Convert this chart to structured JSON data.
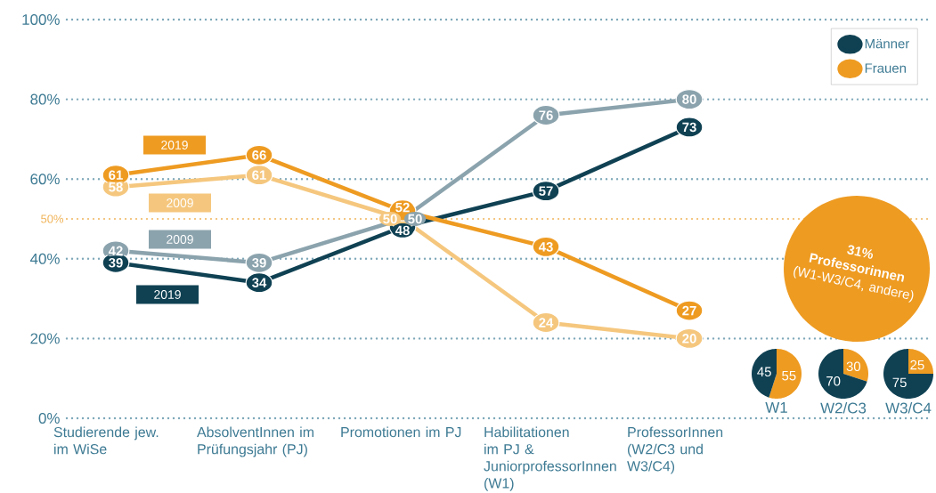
{
  "chart_data": [
    {
      "type": "line",
      "categories": [
        "Studierende jew. im WiSe",
        "AbsolventInnen im Prüfungsjahr (PJ)",
        "Promotionen im PJ",
        "Habilitationen im PJ & JuniorprofessorInnen (W1)",
        "ProfessorInnen (W2/C3 und W3/C4)"
      ],
      "series": [
        {
          "name": "Frauen",
          "color": "#ee9b22",
          "values": [
            61,
            66,
            52,
            43,
            27
          ]
        },
        {
          "color": "#f5c77e",
          "values": [
            58,
            61,
            50,
            24,
            20
          ]
        },
        {
          "name": "Männer",
          "color": "#0f4153",
          "values": [
            39,
            34,
            48,
            57,
            73
          ]
        },
        {
          "color": "#8ba3ad",
          "values": [
            42,
            39,
            50,
            76,
            80
          ]
        }
      ],
      "ylim": [
        0,
        100
      ],
      "yticks": [
        {
          "value": 0,
          "label": "0%"
        },
        {
          "value": 20,
          "label": "20%"
        },
        {
          "value": 40,
          "label": "40%"
        },
        {
          "value": 60,
          "label": "60%"
        },
        {
          "value": 80,
          "label": "80%"
        },
        {
          "value": 100,
          "label": "100%"
        }
      ],
      "grid": "y",
      "legend": "top right",
      "marker": "circle",
      "data_labels": true,
      "ref_lines": [
        {
          "axis": "y",
          "value": 50,
          "label": "50%",
          "color": "#f0b45a",
          "line_style": "dotted"
        }
      ],
      "annotations": [
        "2019",
        "2009",
        "2009",
        "2019",
        "**31% Professorinnen** (W1-W3/C4, andere)"
      ]
    },
    {
      "type": "pie",
      "title": "W1",
      "categories": [
        null,
        null
      ],
      "values": [
        55,
        45
      ],
      "colors": [
        "#ee9b22",
        "#0f4153"
      ],
      "data_labels": true
    },
    {
      "type": "pie",
      "title": "W2/C3",
      "categories": [
        null,
        null
      ],
      "values": [
        30,
        70
      ],
      "colors": [
        "#ee9b22",
        "#0f4153"
      ],
      "data_labels": true
    },
    {
      "type": "pie",
      "title": "W3/C4",
      "categories": [
        null,
        null
      ],
      "values": [
        25,
        75
      ],
      "colors": [
        "#ee9b22",
        "#0f4153"
      ],
      "data_labels": true
    }
  ]
}
